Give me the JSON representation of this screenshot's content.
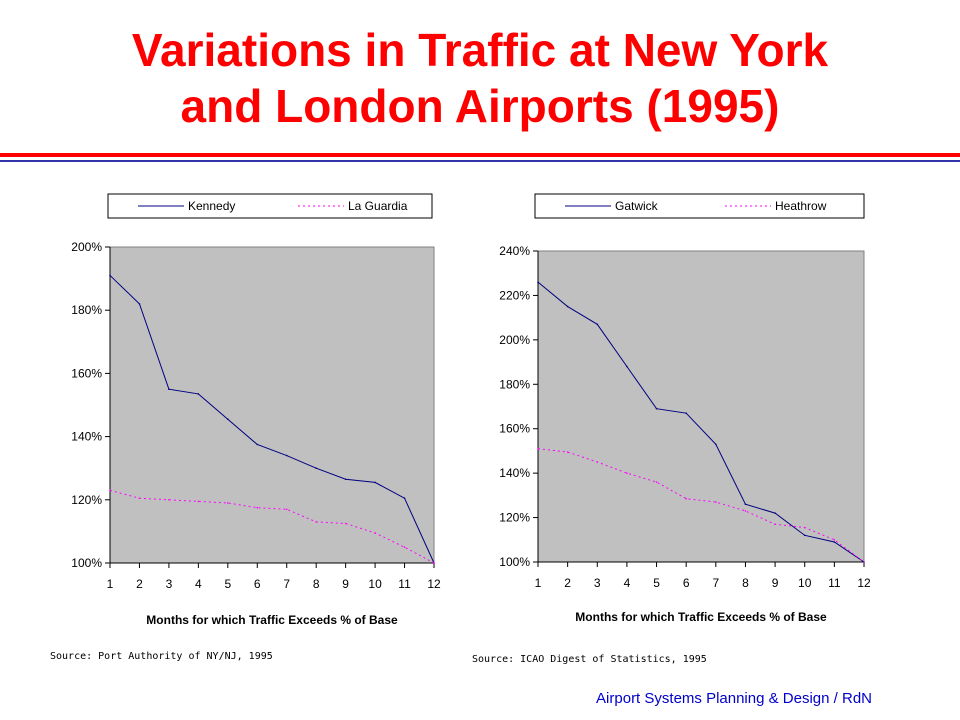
{
  "slide": {
    "title_line1": "Variations in Traffic at New York",
    "title_line2": "and London Airports (1995)",
    "footer": "Airport Systems Planning & Design / RdN",
    "title_color": "#ff0000",
    "footer_color": "#0000cc"
  },
  "chart_data": [
    {
      "type": "line",
      "xlabel": "Months for which Traffic Exceeds % of Base",
      "ylabel": "",
      "x": [
        1,
        2,
        3,
        4,
        5,
        6,
        7,
        8,
        9,
        10,
        11,
        12
      ],
      "ylim": [
        100,
        200
      ],
      "yticks": [
        100,
        120,
        140,
        160,
        180,
        200
      ],
      "ytick_labels": [
        "100%",
        "120%",
        "140%",
        "160%",
        "180%",
        "200%"
      ],
      "grid": false,
      "plot_background": "#c0c0c0",
      "legend_position": "top",
      "source": "Source: Port Authority of NY/NJ, 1995",
      "series": [
        {
          "name": "Kennedy",
          "color": "#000080",
          "style": "solid",
          "values": [
            191,
            182,
            155,
            153.5,
            145.5,
            137.5,
            134,
            130,
            126.5,
            125.5,
            120.5,
            100
          ]
        },
        {
          "name": "La Guardia",
          "color": "#ff00ff",
          "style": "dotted",
          "values": [
            123,
            120.5,
            120,
            119.5,
            119,
            117.5,
            117,
            113,
            112.5,
            109.5,
            105,
            100
          ]
        }
      ]
    },
    {
      "type": "line",
      "xlabel": "Months for which Traffic Exceeds % of Base",
      "ylabel": "",
      "x": [
        1,
        2,
        3,
        4,
        5,
        6,
        7,
        8,
        9,
        10,
        11,
        12
      ],
      "ylim": [
        100,
        240
      ],
      "yticks": [
        100,
        120,
        140,
        160,
        180,
        200,
        220,
        240
      ],
      "ytick_labels": [
        "100%",
        "120%",
        "140%",
        "160%",
        "180%",
        "200%",
        "220%",
        "240%"
      ],
      "grid": false,
      "plot_background": "#c0c0c0",
      "legend_position": "top",
      "source": "Source: ICAO Digest of Statistics, 1995",
      "series": [
        {
          "name": "Gatwick",
          "color": "#000080",
          "style": "solid",
          "values": [
            226,
            215,
            207,
            188,
            169,
            167,
            153,
            126,
            122,
            112,
            109,
            100
          ]
        },
        {
          "name": "Heathrow",
          "color": "#ff00ff",
          "style": "dotted",
          "values": [
            151,
            149.5,
            145,
            140,
            136,
            128.5,
            127,
            123,
            117,
            115.5,
            110,
            100
          ]
        }
      ]
    }
  ]
}
